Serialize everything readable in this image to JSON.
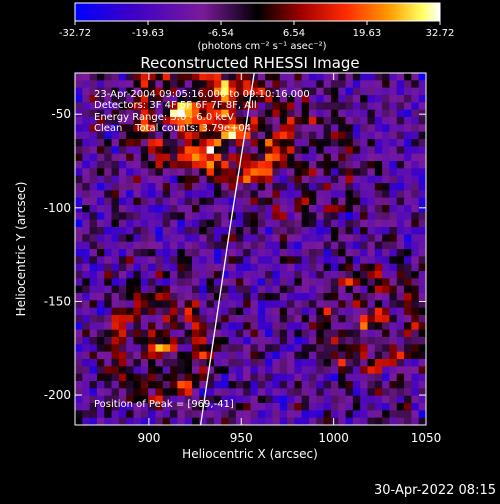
{
  "chart_data": {
    "type": "heatmap",
    "title": "Reconstructed RHESSI Image",
    "xlabel": "Heliocentric X (arcsec)",
    "ylabel": "Heliocentric Y (arcsec)",
    "xlim": [
      860,
      1050
    ],
    "ylim": [
      -216,
      -28
    ],
    "x_ticks": [
      900,
      950,
      1000,
      1050
    ],
    "y_ticks": [
      -50,
      -100,
      -150,
      -200
    ],
    "colorbar": {
      "min": -32.72,
      "max": 32.72,
      "tick_values": [
        -32.72,
        -19.63,
        -6.54,
        6.54,
        19.63,
        32.72
      ],
      "tick_labels": [
        "-32.72",
        "-19.63",
        "-6.54",
        "6.54",
        "19.63",
        "32.72"
      ],
      "unit_label": "(photons cm⁻² s⁻¹ asec⁻²)",
      "colors": [
        "#0000ff",
        "#3a00c8",
        "#7a1a9a",
        "#000000",
        "#a00000",
        "#ff2a00",
        "#ff9a00",
        "#ffff60",
        "#ffffff"
      ]
    },
    "annotations": [
      "23-Apr-2004 09:05:16.000 to 09:10:16.000",
      "Detectors: 3F 4F 5F 6F 7F 8F, All",
      "Energy Range: 3.0 - 6.0 keV",
      "Clean    Total counts: 3.79e+04"
    ],
    "peak_label": "Position of Peak = [969,-41]",
    "limb_points": [
      [
        928,
        -216
      ],
      [
        935,
        -170
      ],
      [
        944,
        -110
      ],
      [
        952,
        -60
      ],
      [
        957,
        -28
      ]
    ],
    "grid_cols": 48,
    "grid_rows": 48,
    "bright_regions": [
      {
        "x": 918,
        "y": -50,
        "strength": 1.0
      },
      {
        "x": 950,
        "y": -58,
        "strength": 0.85
      },
      {
        "x": 905,
        "y": -175,
        "strength": 0.9
      },
      {
        "x": 1020,
        "y": -160,
        "strength": 0.75
      },
      {
        "x": 985,
        "y": -80,
        "strength": 0.4
      }
    ]
  },
  "footer": {
    "timestamp": "30-Apr-2022 08:15"
  }
}
